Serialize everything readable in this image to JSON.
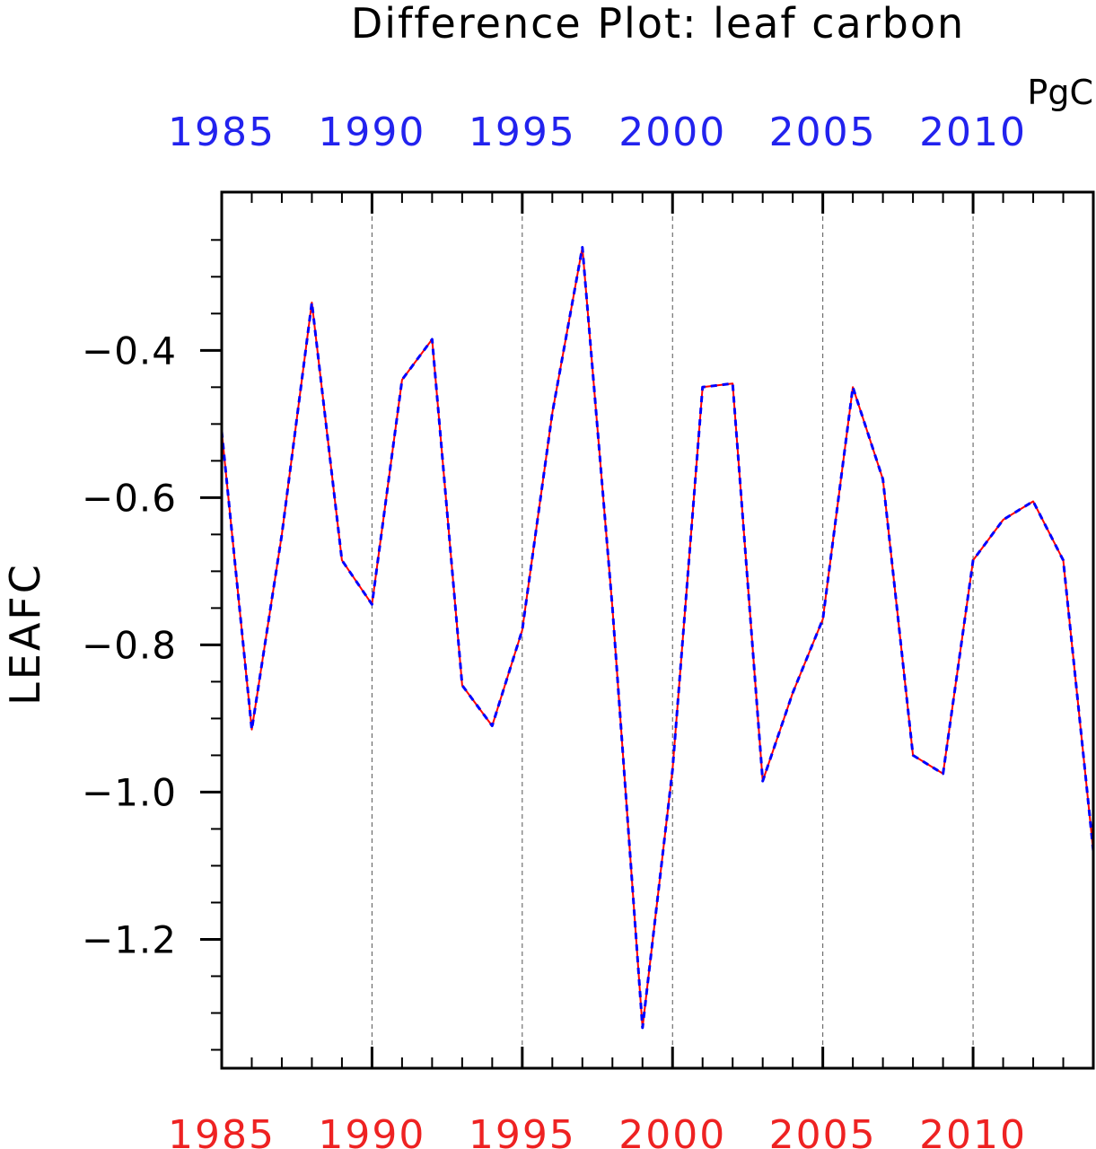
{
  "chart_data": {
    "type": "line",
    "title": "Difference Plot: leaf carbon",
    "units": "PgC",
    "ylabel": "LEAFC",
    "xlabel": "",
    "xlim": [
      1985,
      2014
    ],
    "ylim": [
      -1.375,
      -0.185
    ],
    "x_ticks": [
      1985,
      1990,
      1995,
      2000,
      2005,
      2010
    ],
    "x_tick_labels": [
      "1985",
      "1990",
      "1995",
      "2000",
      "2005",
      "2010"
    ],
    "y_ticks": [
      -1.2,
      -1.0,
      -0.8,
      -0.6,
      -0.4
    ],
    "y_tick_labels": [
      "−1.2",
      "−1.0",
      "−0.8",
      "−0.6",
      "−0.4"
    ],
    "grid": "vertical dashed at major x ticks",
    "colors": {
      "top_axis_labels": "#2222ee",
      "bottom_axis_labels": "#ee2222",
      "series_a": "#ff0000",
      "series_b": "#0000ff"
    },
    "x": [
      1985,
      1986,
      1987,
      1988,
      1989,
      1990,
      1991,
      1992,
      1993,
      1994,
      1995,
      1996,
      1997,
      1998,
      1999,
      2000,
      2001,
      2002,
      2003,
      2004,
      2005,
      2006,
      2007,
      2008,
      2009,
      2010,
      2011,
      2012,
      2013,
      2014
    ],
    "series": [
      {
        "style": "solid",
        "values": [
          -0.51,
          -0.915,
          -0.65,
          -0.335,
          -0.685,
          -0.745,
          -0.44,
          -0.385,
          -0.855,
          -0.91,
          -0.78,
          -0.485,
          -0.26,
          -0.75,
          -1.32,
          -0.97,
          -0.45,
          -0.445,
          -0.985,
          -0.865,
          -0.765,
          -0.45,
          -0.575,
          -0.95,
          -0.975,
          -0.685,
          -0.63,
          -0.605,
          -0.685,
          -1.08
        ]
      },
      {
        "style": "dashed",
        "values": [
          -0.51,
          -0.915,
          -0.65,
          -0.335,
          -0.685,
          -0.745,
          -0.44,
          -0.385,
          -0.855,
          -0.91,
          -0.78,
          -0.485,
          -0.26,
          -0.75,
          -1.32,
          -0.97,
          -0.45,
          -0.445,
          -0.985,
          -0.865,
          -0.765,
          -0.45,
          -0.575,
          -0.95,
          -0.975,
          -0.685,
          -0.63,
          -0.605,
          -0.685,
          -1.08
        ]
      }
    ]
  }
}
